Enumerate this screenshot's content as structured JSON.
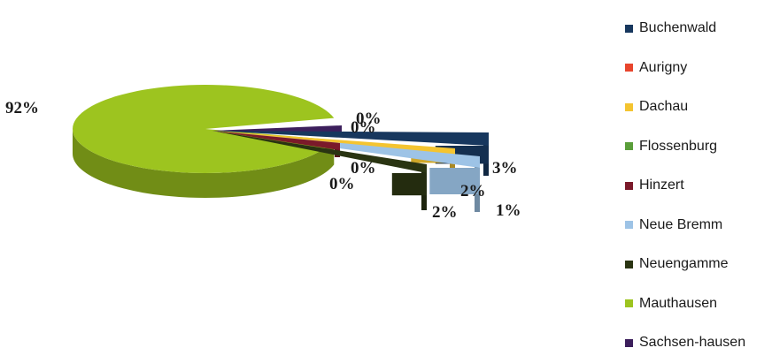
{
  "chart_data": {
    "type": "pie",
    "title": "",
    "categories": [
      "Buchenwald",
      "Aurigny",
      "Dachau",
      "Flossenburg",
      "Hinzert",
      "Neue Bremm",
      "Neuengamme",
      "Mauthausen",
      "Sachsen-hausen"
    ],
    "values": [
      3,
      0,
      1,
      0,
      0,
      2,
      2,
      92,
      0
    ],
    "data_labels": [
      "3%",
      "0%",
      "1%",
      "0%",
      "0%",
      "2%",
      "2%",
      "92%",
      "0%"
    ],
    "colors": [
      "#17375e",
      "#e8452c",
      "#f4c430",
      "#5a9e3a",
      "#7b1a2a",
      "#9dc3e6",
      "#2a3412",
      "#9dc41f",
      "#3c1f5c"
    ],
    "legend_position": "right",
    "style": "3d-exploded"
  }
}
